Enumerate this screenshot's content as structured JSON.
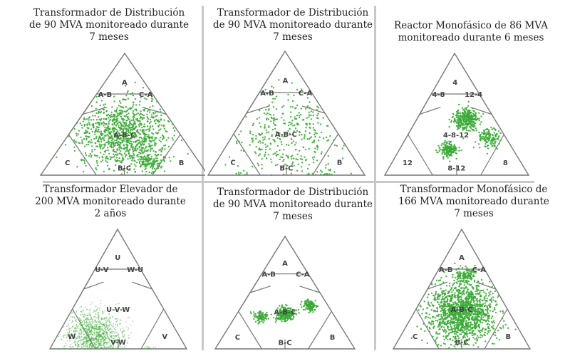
{
  "colors": {
    "point": "#3aaa35",
    "accent": "#f0a020",
    "line": "#777777",
    "separator": "#c8c8c8"
  },
  "chart_data": [
    {
      "type": "scatter",
      "subtype": "ternary-triangle",
      "title": [
        "Transformador de Distribución",
        "de 90 MVA monitoreado durante",
        "7 meses"
      ],
      "regions": [
        "A",
        "C-A",
        "A-B",
        "A-B-C",
        "C",
        "B",
        "B-C"
      ],
      "clusters": [
        {
          "u": 0.0,
          "v": 0.0,
          "n": 1100,
          "spread": 0.28
        },
        {
          "u": 0.3,
          "v": 0.45,
          "n": 120,
          "spread": 0.08
        }
      ]
    },
    {
      "type": "scatter",
      "subtype": "ternary-triangle",
      "title": [
        "Transformador de Distribución",
        "de 90 MVA monitoreado durante",
        "7 meses"
      ],
      "regions": [
        "A",
        "C-A",
        "A-B",
        "A-B-C",
        "C",
        "B",
        "B-C"
      ],
      "clusters": [
        {
          "u": 0.0,
          "v": 0.05,
          "n": 420,
          "spread": 0.38
        },
        {
          "u": 0.55,
          "v": 0.7,
          "n": 60,
          "spread": 0.06
        },
        {
          "u": -0.55,
          "v": 0.7,
          "n": 40,
          "spread": 0.06
        }
      ]
    },
    {
      "type": "scatter",
      "subtype": "ternary-triangle",
      "title": [
        "Reactor Monofásico de 86 MVA",
        "monitoreado durante 6 meses"
      ],
      "regions": [
        "4",
        "12-4",
        "4-8",
        "4-8-12",
        "12",
        "8",
        "8-12"
      ],
      "clusters": [
        {
          "u": 0.15,
          "v": -0.25,
          "n": 320,
          "spread": 0.09
        },
        {
          "u": -0.1,
          "v": 0.25,
          "n": 160,
          "spread": 0.06
        },
        {
          "u": 0.45,
          "v": 0.05,
          "n": 140,
          "spread": 0.08
        }
      ]
    },
    {
      "type": "scatter",
      "subtype": "ternary-triangle",
      "title": [
        "Transformador Elevador de",
        "200 MVA monitoreado durante",
        "2 años"
      ],
      "regions": [
        "U",
        "W-U",
        "U-V",
        "U-V-W",
        "W",
        "V",
        "V-W"
      ],
      "clusters": [
        {
          "u": -0.35,
          "v": 0.45,
          "n": 1300,
          "spread": 0.22
        },
        {
          "u": 0.45,
          "v": 0.75,
          "n": 500,
          "spread": 0.05
        }
      ]
    },
    {
      "type": "scatter",
      "subtype": "ternary-triangle",
      "title": [
        "Transformador de Distribución",
        "de 90 MVA monitoreado durante",
        "7 meses"
      ],
      "regions": [
        "A",
        "C-A",
        "A-B",
        "A-B-C",
        "C",
        "B",
        "B-C"
      ],
      "clusters": [
        {
          "u": 0.0,
          "v": 0.05,
          "n": 260,
          "spread": 0.06
        },
        {
          "u": 0.35,
          "v": -0.1,
          "n": 120,
          "spread": 0.05
        },
        {
          "u": -0.35,
          "v": 0.1,
          "n": 90,
          "spread": 0.05
        }
      ]
    },
    {
      "type": "scatter",
      "subtype": "ternary-triangle",
      "title": [
        "Transformador Monofásico de",
        "166 MVA monitoreado durante",
        "7 meses"
      ],
      "regions": [
        "A",
        "C-A",
        "A-B",
        "A-B-C",
        "C",
        "B",
        "B-C"
      ],
      "clusters": [
        {
          "u": 0.0,
          "v": 0.05,
          "n": 1400,
          "spread": 0.25
        },
        {
          "u": 0.05,
          "v": -0.55,
          "n": 120,
          "spread": 0.08
        }
      ]
    }
  ]
}
